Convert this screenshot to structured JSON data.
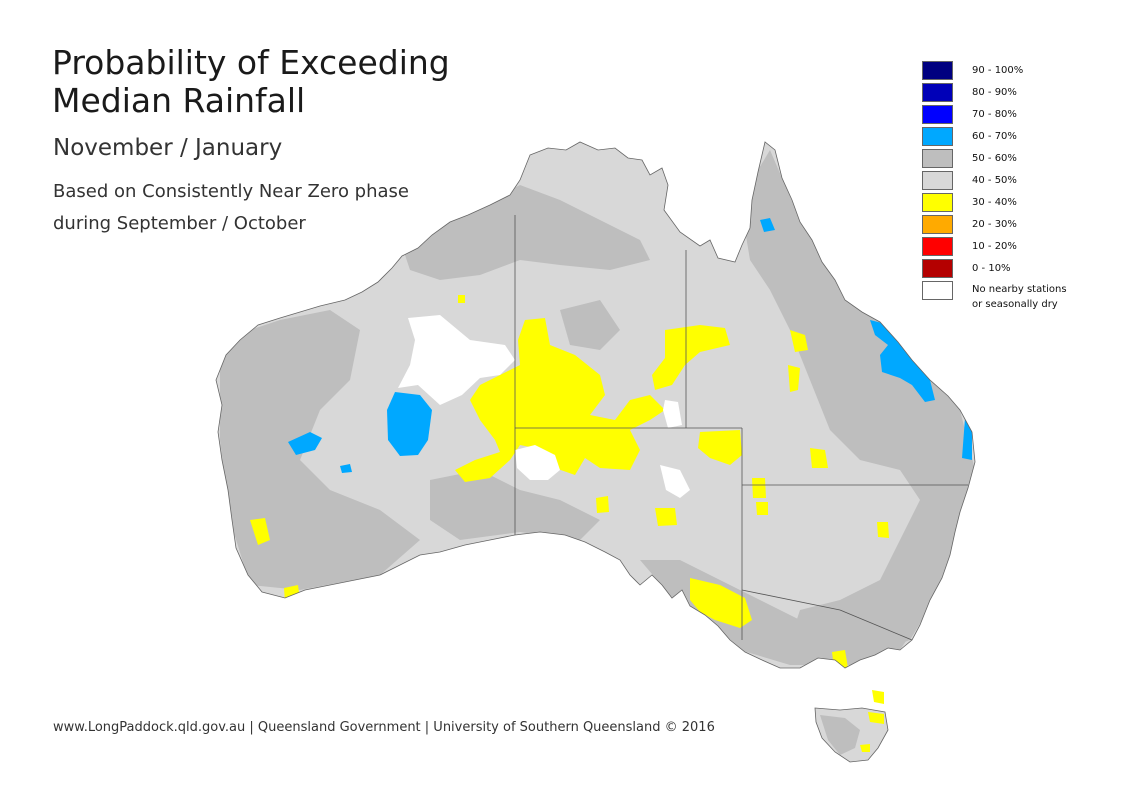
{
  "title": {
    "line1": "Probability of Exceeding",
    "line2": "Median Rainfall"
  },
  "subtitle": "November / January",
  "description": {
    "line1": "Based on Consistently Near Zero phase",
    "line2": "during September / October"
  },
  "legend": {
    "items": [
      {
        "label": "90 - 100%",
        "color": "#000080"
      },
      {
        "label": "80 - 90%",
        "color": "#0000b8"
      },
      {
        "label": "70 - 80%",
        "color": "#0000ff"
      },
      {
        "label": "60 - 70%",
        "color": "#00a8ff"
      },
      {
        "label": "50 - 60%",
        "color": "#bebebe"
      },
      {
        "label": "40 - 50%",
        "color": "#d8d8d8"
      },
      {
        "label": "30 - 40%",
        "color": "#ffff00"
      },
      {
        "label": "20 - 30%",
        "color": "#ffaa00"
      },
      {
        "label": "10 - 20%",
        "color": "#ff0000"
      },
      {
        "label": "0 - 10%",
        "color": "#b40000"
      }
    ],
    "no_data": {
      "line1": "No nearby stations",
      "line2": "or seasonally dry",
      "color": "#ffffff"
    }
  },
  "footer": "www.LongPaddock.qld.gov.au | Queensland Government | University of Southern Queensland © 2016"
}
